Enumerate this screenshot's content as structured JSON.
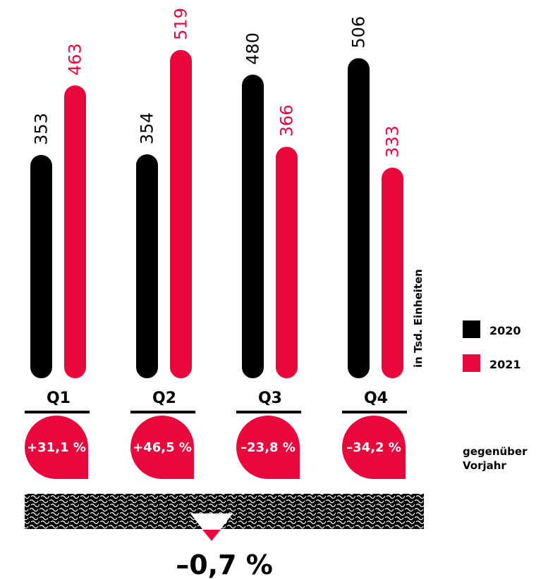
{
  "chart_data": {
    "type": "bar",
    "unit_label": "in Tsd. Einheiten",
    "categories": [
      "Q1",
      "Q2",
      "Q3",
      "Q4"
    ],
    "series": [
      {
        "name": "2020",
        "values": [
          353,
          354,
          480,
          506
        ],
        "color": "#000000"
      },
      {
        "name": "2021",
        "values": [
          463,
          519,
          366,
          333
        ],
        "color": "#e8063c"
      }
    ],
    "value_labels": {
      "2020": [
        "353",
        "354",
        "480",
        "506"
      ],
      "2021": [
        "463",
        "519",
        "366",
        "333"
      ]
    },
    "yoy_changes": [
      "+31,1 %",
      "+46,5 %",
      "–23,8 %",
      "–34,2 %"
    ],
    "yoy_note_line1": "gegenüber",
    "yoy_note_line2": "Vorjahr",
    "total_change": "–0,7 %",
    "legend": [
      {
        "label": "2020",
        "color": "#000000"
      },
      {
        "label": "2021",
        "color": "#e8063c"
      }
    ]
  }
}
